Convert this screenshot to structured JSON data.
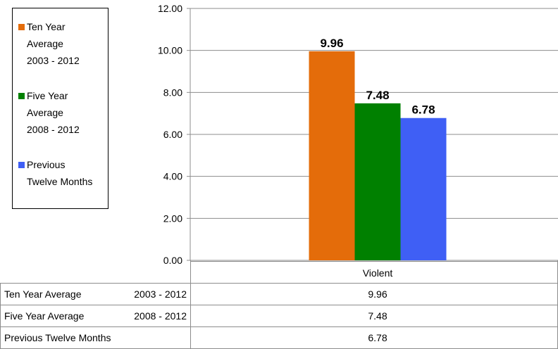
{
  "chart_data": {
    "type": "bar",
    "categories": [
      "Violent"
    ],
    "series": [
      {
        "name": "Ten Year Average 2003 - 2012",
        "values": [
          9.96
        ],
        "color": "#E46C0A"
      },
      {
        "name": "Five Year Average 2008 - 2012",
        "values": [
          7.48
        ],
        "color": "#008000"
      },
      {
        "name": "Previous Twelve Months",
        "values": [
          6.78
        ],
        "color": "#3F5FF5"
      }
    ],
    "data_labels": [
      "9.96",
      "7.48",
      "6.78"
    ],
    "ylim": [
      0,
      12
    ],
    "yticks": [
      "0.00",
      "2.00",
      "4.00",
      "6.00",
      "8.00",
      "10.00",
      "12.00"
    ],
    "grid": true,
    "legend_position": "left",
    "legend": [
      {
        "text": "Ten Year\nAverage\n2003 - 2012",
        "color": "#E46C0A"
      },
      {
        "text": "Five Year\nAverage\n2008 - 2012",
        "color": "#008000"
      },
      {
        "text": "Previous\nTwelve Months",
        "color": "#3F5FF5"
      }
    ],
    "table": {
      "rows": [
        {
          "label": "Ten Year Average",
          "range": "2003 - 2012",
          "value": "9.96"
        },
        {
          "label": "Five Year Average",
          "range": "2008 - 2012",
          "value": "7.48"
        },
        {
          "label": "Previous Twelve Months",
          "range": "",
          "value": "6.78"
        }
      ]
    }
  }
}
